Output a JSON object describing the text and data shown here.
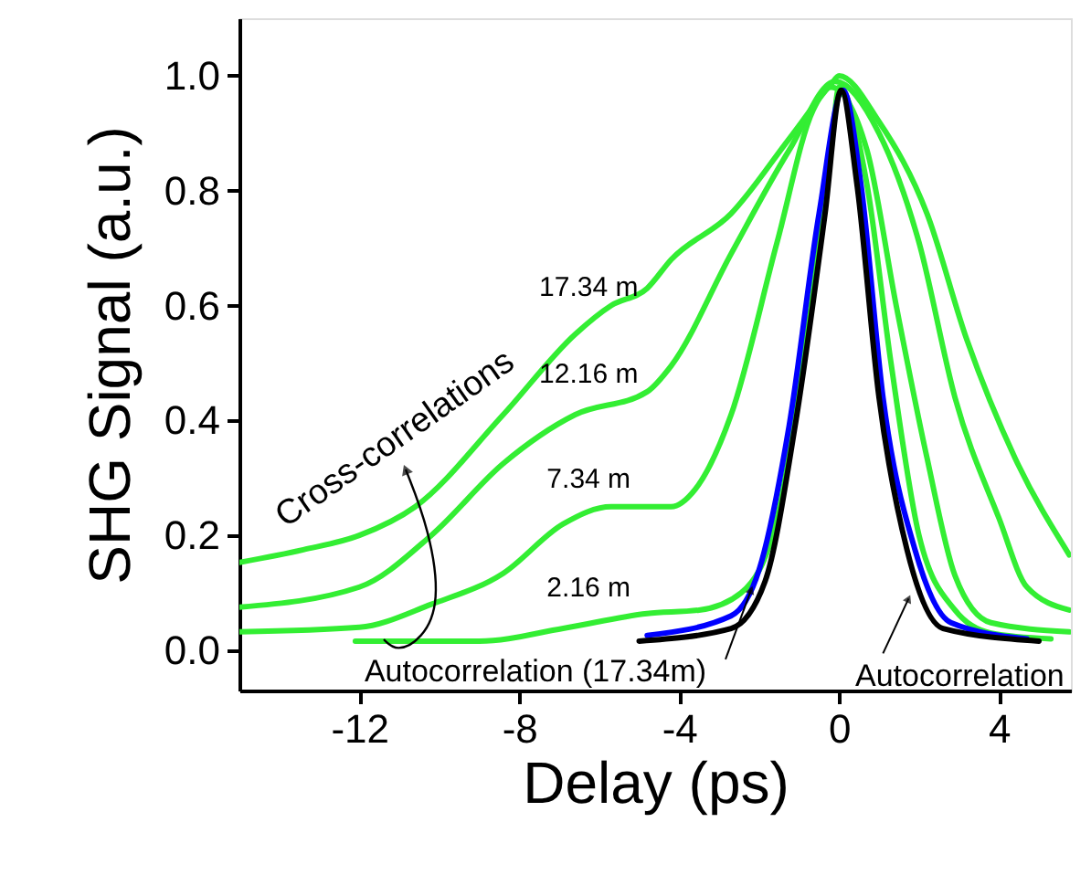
{
  "chart_data": {
    "type": "line",
    "xlabel": "Delay (ps)",
    "ylabel": "SHG Signal (a.u.)",
    "xlim": [
      -15,
      5.8
    ],
    "ylim": [
      -0.07,
      1.1
    ],
    "xticks": [
      -12,
      -8,
      -4,
      0,
      4
    ],
    "yticks": [
      {
        "value": 0,
        "label": "0.0"
      },
      {
        "value": 0.2,
        "label": "0.2"
      },
      {
        "value": 0.4,
        "label": "0.4"
      },
      {
        "value": 0.6,
        "label": "0.6"
      },
      {
        "value": 0.8,
        "label": "0.8"
      },
      {
        "value": 1,
        "label": "1.0"
      }
    ],
    "grid": false,
    "marker": "none",
    "line_style": "solid",
    "series": [
      {
        "name": "17.34 m",
        "color": "#33ee33",
        "x": [
          -15,
          -13.4,
          -12,
          -10.6,
          -8.4,
          -6.6,
          -5.7,
          -4.8,
          -4.2,
          -2.7,
          -1.25,
          -0.2,
          0,
          1.0,
          2.2,
          3.2,
          4.4,
          5.76
        ],
        "values": [
          0.153,
          0.175,
          0.2,
          0.25,
          0.41,
          0.55,
          0.6,
          0.63,
          0.68,
          0.76,
          0.89,
          0.985,
          1.0,
          0.92,
          0.76,
          0.54,
          0.335,
          0.166
        ]
      },
      {
        "name": "12.16 m",
        "color": "#33ee33",
        "x": [
          -15,
          -12,
          -10.2,
          -8.4,
          -6.6,
          -4.8,
          -4.2,
          -2.7,
          -1.25,
          -0.1,
          1.0,
          2.0,
          2.9,
          4.0,
          4.7,
          5.76
        ],
        "values": [
          0.075,
          0.11,
          0.2,
          0.325,
          0.41,
          0.45,
          0.495,
          0.69,
          0.87,
          0.99,
          0.9,
          0.71,
          0.44,
          0.23,
          0.11,
          0.07
        ]
      },
      {
        "name": "7.34 m",
        "color": "#33ee33",
        "x": [
          -15,
          -12,
          -10.2,
          -8.4,
          -6.9,
          -5.7,
          -4.2,
          -3.6,
          -2.7,
          -1.55,
          -0.65,
          -0.2,
          0.7,
          1.43,
          2.2,
          2.9,
          3.8,
          5.76
        ],
        "values": [
          0.032,
          0.04,
          0.08,
          0.134,
          0.22,
          0.25,
          0.25,
          0.28,
          0.41,
          0.71,
          0.94,
          0.98,
          0.87,
          0.6,
          0.335,
          0.13,
          0.048,
          0.032
        ]
      },
      {
        "name": "2.16 m",
        "color": "#33ee33",
        "x": [
          -12.1,
          -9,
          -6.9,
          -4.8,
          -3.5,
          -2.45,
          -1.55,
          -0.8,
          -0.2,
          0,
          0.7,
          1.3,
          2.0,
          2.9,
          3.8,
          5.3
        ],
        "values": [
          0.016,
          0.016,
          0.038,
          0.064,
          0.07,
          0.1,
          0.23,
          0.55,
          0.87,
          0.98,
          0.81,
          0.5,
          0.2,
          0.07,
          0.03,
          0.02
        ]
      },
      {
        "color": "#0000ff",
        "x": [
          -4.8,
          -2.7,
          -2.0,
          -1.25,
          -0.5,
          0.1,
          0.55,
          1.1,
          1.9,
          2.8,
          4.7
        ],
        "values": [
          0.026,
          0.06,
          0.14,
          0.39,
          0.76,
          0.975,
          0.81,
          0.44,
          0.175,
          0.048,
          0.02
        ]
      },
      {
        "color": "#000000",
        "x": [
          -5,
          -2.7,
          -1.85,
          -1.1,
          -0.35,
          0.05,
          0.45,
          1.0,
          1.7,
          2.6,
          5.0
        ],
        "values": [
          0.016,
          0.038,
          0.12,
          0.39,
          0.76,
          0.975,
          0.81,
          0.44,
          0.175,
          0.038,
          0.016
        ]
      }
    ],
    "annotations": [
      "Cross-correlations",
      {
        "text": "Autocorrelation (17.34m)",
        "x": -2.2,
        "y": 0.105
      },
      {
        "text": "Autocorrelation",
        "x": 1.74,
        "y": 0.09
      }
    ]
  }
}
